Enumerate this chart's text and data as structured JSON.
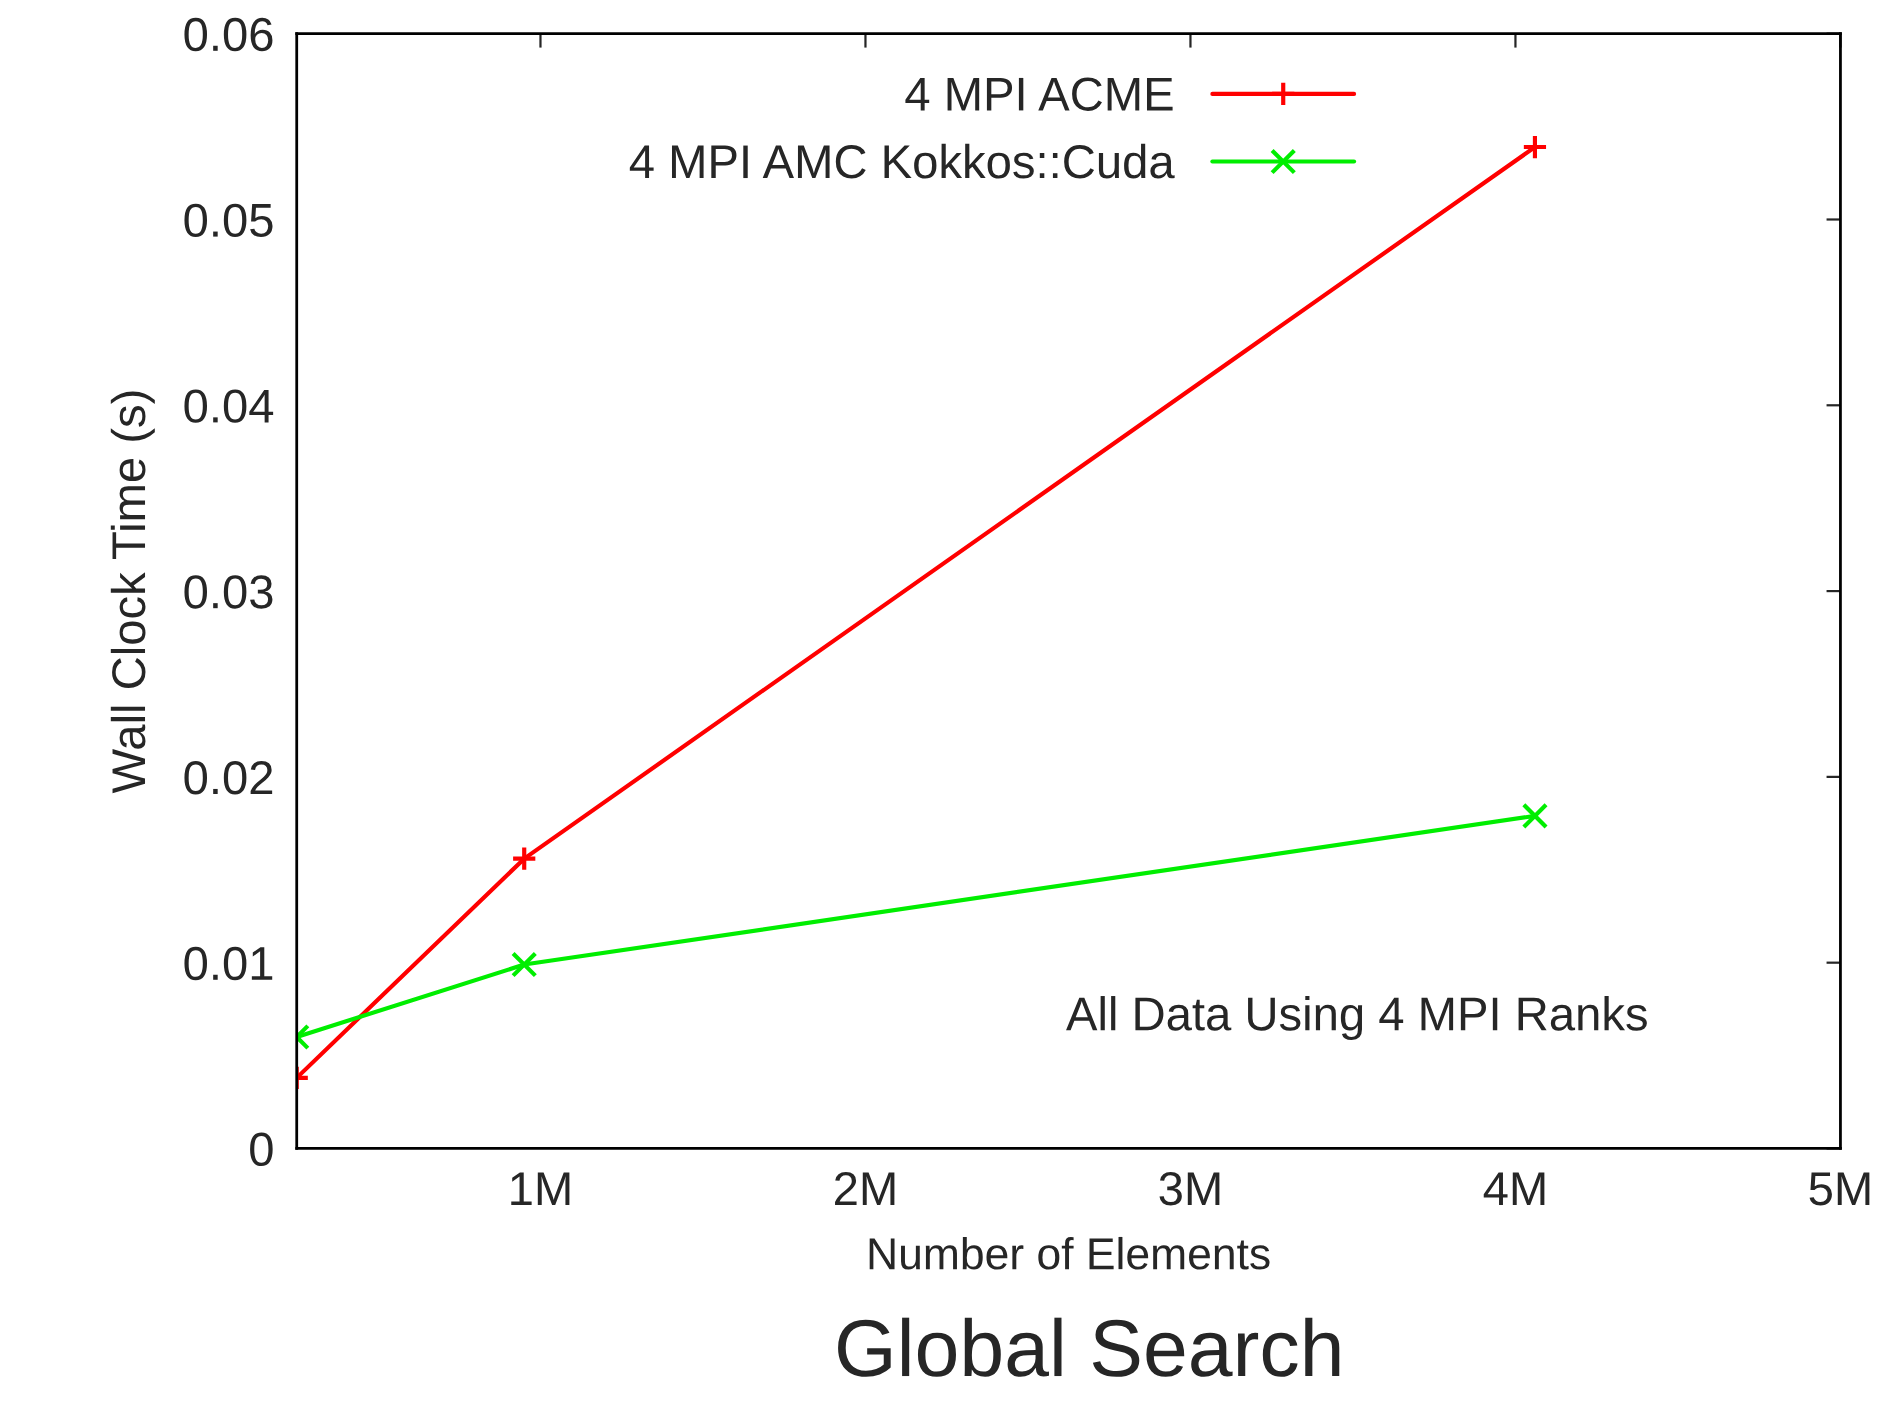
{
  "chart_data": {
    "type": "line",
    "title": "Global Search",
    "xlabel": "Number of Elements",
    "ylabel": "Wall Clock Time (s)",
    "series": [
      {
        "name": "4 MPI ACME",
        "color": "#ff0000",
        "marker": "plus",
        "x": [
          0.25,
          0.95,
          4.06
        ],
        "values": [
          0.0038,
          0.0156,
          0.0539
        ]
      },
      {
        "name": "4 MPI AMC Kokkos::Cuda",
        "color": "#00ee00",
        "marker": "cross",
        "x": [
          0.25,
          0.95,
          4.06
        ],
        "values": [
          0.006,
          0.0099,
          0.0179
        ]
      }
    ],
    "xlim": [
      0.25,
      5
    ],
    "xticks": [
      {
        "value": 1,
        "label": "1M"
      },
      {
        "value": 2,
        "label": "2M"
      },
      {
        "value": 3,
        "label": "3M"
      },
      {
        "value": 4,
        "label": "4M"
      },
      {
        "value": 5,
        "label": "5M"
      }
    ],
    "ylim": [
      0,
      0.06
    ],
    "yticks": [
      0,
      0.01,
      0.02,
      0.03,
      0.04,
      0.05,
      0.06
    ],
    "annotations": [
      "All Data Using 4 MPI Ranks"
    ],
    "grid": false,
    "legend": "top",
    "line_style": "solid"
  }
}
